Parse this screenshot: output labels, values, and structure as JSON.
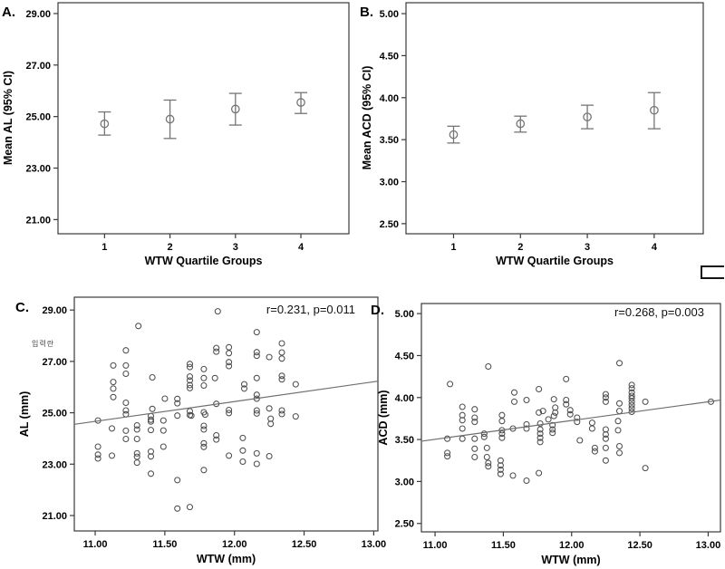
{
  "figure": {
    "background": "#ffffff",
    "korean_note": "입력란"
  },
  "colors": {
    "frame": "#3a3a3a",
    "errorbar": "#757575",
    "marker": "#4d4d4d",
    "fit_line": "#6e6e6e",
    "text": "#000000"
  },
  "chart_data": [
    {
      "id": "A",
      "panel_label": "A.",
      "type": "errorbar",
      "title": "",
      "ylabel": "Mean AL (95% CI)",
      "xlabel": "WTW Quartile Groups",
      "ylim": [
        20.45,
        29.42
      ],
      "yticks": [
        "21.00",
        "23.00",
        "25.00",
        "27.00",
        "29.00"
      ],
      "categories": [
        "1",
        "2",
        "3",
        "4"
      ],
      "cat_pos": [
        0.16,
        0.385,
        0.61,
        0.835
      ],
      "means": [
        24.72,
        24.9,
        25.29,
        25.55
      ],
      "ci_low": [
        24.28,
        24.15,
        24.67,
        25.12
      ],
      "ci_high": [
        25.18,
        25.64,
        25.9,
        25.93
      ],
      "grid": false,
      "legend": "none"
    },
    {
      "id": "B",
      "panel_label": "B.",
      "type": "errorbar",
      "title": "",
      "ylabel": "Mean ACD (95% CI)",
      "xlabel": "WTW Quartile Groups",
      "ylim": [
        2.38,
        5.13
      ],
      "yticks": [
        "2.50",
        "3.00",
        "3.50",
        "4.00",
        "4.50",
        "5.00"
      ],
      "categories": [
        "1",
        "2",
        "3",
        "4"
      ],
      "cat_pos": [
        0.16,
        0.385,
        0.61,
        0.835
      ],
      "means": [
        3.56,
        3.69,
        3.77,
        3.85
      ],
      "ci_low": [
        3.46,
        3.59,
        3.63,
        3.63
      ],
      "ci_high": [
        3.66,
        3.78,
        3.91,
        4.06
      ],
      "grid": false,
      "legend": "none"
    },
    {
      "id": "C",
      "panel_label": "C.",
      "type": "scatter",
      "title": "",
      "ylabel": "AL (mm)",
      "xlabel": "WTW (mm)",
      "annotation": "r=0.231, p=0.011",
      "xlim": [
        10.85,
        13.03
      ],
      "ylim": [
        20.4,
        29.5
      ],
      "xticks": [
        "11.00",
        "11.50",
        "12.00",
        "12.50",
        "13.00"
      ],
      "yticks": [
        "21.00",
        "23.00",
        "25.00",
        "27.00",
        "29.00"
      ],
      "fit_line": {
        "x1": 10.85,
        "y1": 24.55,
        "x2": 13.03,
        "y2": 26.23
      },
      "grid": false,
      "legend": "none",
      "points": [
        [
          11.88,
          28.95
        ],
        [
          11.31,
          28.38
        ],
        [
          12.16,
          28.14
        ],
        [
          11.22,
          27.43
        ],
        [
          11.87,
          27.52
        ],
        [
          11.87,
          27.38
        ],
        [
          11.96,
          27.55
        ],
        [
          11.96,
          27.32
        ],
        [
          12.16,
          27.36
        ],
        [
          12.16,
          27.22
        ],
        [
          12.25,
          27.17
        ],
        [
          12.34,
          27.7
        ],
        [
          12.34,
          27.35
        ],
        [
          12.34,
          27.11
        ],
        [
          11.96,
          26.97
        ],
        [
          11.96,
          26.82
        ],
        [
          11.13,
          26.84
        ],
        [
          11.22,
          26.84
        ],
        [
          11.22,
          26.52
        ],
        [
          11.41,
          26.38
        ],
        [
          11.68,
          26.9
        ],
        [
          11.68,
          26.78
        ],
        [
          11.68,
          26.41
        ],
        [
          11.68,
          26.26
        ],
        [
          11.68,
          26.08
        ],
        [
          11.68,
          25.96
        ],
        [
          11.78,
          26.7
        ],
        [
          11.78,
          26.35
        ],
        [
          11.78,
          26.06
        ],
        [
          11.86,
          26.35
        ],
        [
          12.07,
          26.11
        ],
        [
          12.07,
          25.94
        ],
        [
          12.16,
          26.35
        ],
        [
          12.34,
          26.44
        ],
        [
          12.34,
          26.3
        ],
        [
          12.44,
          26.11
        ],
        [
          11.13,
          26.2
        ],
        [
          11.13,
          25.94
        ],
        [
          11.13,
          25.61
        ],
        [
          11.5,
          25.55
        ],
        [
          11.59,
          25.54
        ],
        [
          11.59,
          25.37
        ],
        [
          11.22,
          25.39
        ],
        [
          11.41,
          25.15
        ],
        [
          11.22,
          25.09
        ],
        [
          11.22,
          24.94
        ],
        [
          11.68,
          25.06
        ],
        [
          11.68,
          24.91
        ],
        [
          11.78,
          25.02
        ],
        [
          12.16,
          25.7
        ],
        [
          12.16,
          25.55
        ],
        [
          11.87,
          25.35
        ],
        [
          12.25,
          25.17
        ],
        [
          12.34,
          25.09
        ],
        [
          12.34,
          24.95
        ],
        [
          11.96,
          25.11
        ],
        [
          11.96,
          24.99
        ],
        [
          12.16,
          25.09
        ],
        [
          12.16,
          24.97
        ],
        [
          12.44,
          24.86
        ],
        [
          12.26,
          24.77
        ],
        [
          12.26,
          24.57
        ],
        [
          11.87,
          24.12
        ],
        [
          11.87,
          23.96
        ],
        [
          11.02,
          24.7
        ],
        [
          11.4,
          24.87
        ],
        [
          11.4,
          24.73
        ],
        [
          11.12,
          24.39
        ],
        [
          11.22,
          24.3
        ],
        [
          11.22,
          23.98
        ],
        [
          11.3,
          24.51
        ],
        [
          11.3,
          24.35
        ],
        [
          11.3,
          23.98
        ],
        [
          11.4,
          24.66
        ],
        [
          11.4,
          24.33
        ],
        [
          11.49,
          24.7
        ],
        [
          11.49,
          24.31
        ],
        [
          11.49,
          23.68
        ],
        [
          11.59,
          24.89
        ],
        [
          11.69,
          24.89
        ],
        [
          11.79,
          24.93
        ],
        [
          11.78,
          24.49
        ],
        [
          11.78,
          24.35
        ],
        [
          11.78,
          23.81
        ],
        [
          11.78,
          23.67
        ],
        [
          11.02,
          23.68
        ],
        [
          11.02,
          23.37
        ],
        [
          11.02,
          23.22
        ],
        [
          11.12,
          23.33
        ],
        [
          11.3,
          23.42
        ],
        [
          11.3,
          23.29
        ],
        [
          11.3,
          23.06
        ],
        [
          11.4,
          23.49
        ],
        [
          11.4,
          23.3
        ],
        [
          11.4,
          22.63
        ],
        [
          11.78,
          22.77
        ],
        [
          11.59,
          22.38
        ],
        [
          11.59,
          21.27
        ],
        [
          11.68,
          21.33
        ],
        [
          12.06,
          24.02
        ],
        [
          12.06,
          23.53
        ],
        [
          12.06,
          23.1
        ],
        [
          11.96,
          23.33
        ],
        [
          12.16,
          23.42
        ],
        [
          12.16,
          23.01
        ],
        [
          12.25,
          23.31
        ]
      ]
    },
    {
      "id": "D",
      "panel_label": "D.",
      "type": "scatter",
      "title": "",
      "ylabel": "ACD (mm)",
      "xlabel": "WTW (mm)",
      "annotation": "r=0.268, p=0.003",
      "xlim": [
        10.9,
        13.09
      ],
      "ylim": [
        2.4,
        5.12
      ],
      "xticks": [
        "11.00",
        "11.50",
        "12.00",
        "12.50",
        "13.00"
      ],
      "yticks": [
        "2.50",
        "3.00",
        "3.50",
        "4.00",
        "4.50",
        "5.00"
      ],
      "fit_line": {
        "x1": 10.9,
        "y1": 3.48,
        "x2": 13.09,
        "y2": 3.97
      },
      "grid": false,
      "legend": "none",
      "points": [
        [
          11.39,
          4.37
        ],
        [
          11.11,
          4.16
        ],
        [
          11.96,
          4.22
        ],
        [
          12.35,
          4.41
        ],
        [
          11.58,
          4.06
        ],
        [
          11.58,
          3.95
        ],
        [
          11.76,
          4.1
        ],
        [
          11.67,
          3.97
        ],
        [
          11.87,
          3.98
        ],
        [
          11.2,
          3.89
        ],
        [
          11.29,
          3.86
        ],
        [
          11.79,
          3.84
        ],
        [
          11.88,
          3.88
        ],
        [
          11.88,
          3.82
        ],
        [
          11.96,
          3.97
        ],
        [
          11.96,
          3.92
        ],
        [
          11.2,
          3.79
        ],
        [
          11.49,
          3.79
        ],
        [
          11.76,
          3.82
        ],
        [
          11.87,
          3.78
        ],
        [
          12.44,
          4.15
        ],
        [
          12.44,
          4.11
        ],
        [
          12.44,
          4.06
        ],
        [
          12.44,
          4.02
        ],
        [
          12.44,
          3.99
        ],
        [
          12.44,
          3.95
        ],
        [
          12.44,
          3.91
        ],
        [
          12.44,
          3.87
        ],
        [
          12.44,
          3.83
        ],
        [
          12.25,
          4.04
        ],
        [
          12.25,
          4.0
        ],
        [
          12.25,
          3.95
        ],
        [
          12.35,
          3.93
        ],
        [
          12.35,
          3.84
        ],
        [
          12.54,
          3.95
        ],
        [
          11.99,
          3.85
        ],
        [
          11.99,
          3.8
        ],
        [
          11.2,
          3.73
        ],
        [
          11.2,
          3.63
        ],
        [
          11.29,
          3.76
        ],
        [
          11.29,
          3.71
        ],
        [
          11.49,
          3.72
        ],
        [
          11.09,
          3.51
        ],
        [
          11.2,
          3.51
        ],
        [
          11.29,
          3.51
        ],
        [
          11.36,
          3.57
        ],
        [
          11.36,
          3.53
        ],
        [
          11.49,
          3.61
        ],
        [
          11.49,
          3.57
        ],
        [
          11.49,
          3.52
        ],
        [
          11.57,
          3.63
        ],
        [
          11.67,
          3.68
        ],
        [
          11.67,
          3.63
        ],
        [
          11.77,
          3.69
        ],
        [
          11.83,
          3.74
        ],
        [
          11.77,
          3.62
        ],
        [
          11.77,
          3.57
        ],
        [
          11.77,
          3.52
        ],
        [
          11.77,
          3.47
        ],
        [
          11.86,
          3.67
        ],
        [
          11.86,
          3.62
        ],
        [
          11.86,
          3.58
        ],
        [
          11.09,
          3.34
        ],
        [
          11.09,
          3.3
        ],
        [
          11.29,
          3.39
        ],
        [
          11.29,
          3.29
        ],
        [
          11.38,
          3.4
        ],
        [
          11.38,
          3.29
        ],
        [
          11.39,
          3.22
        ],
        [
          11.39,
          3.18
        ],
        [
          11.48,
          3.25
        ],
        [
          11.48,
          3.19
        ],
        [
          11.48,
          3.14
        ],
        [
          11.48,
          3.09
        ],
        [
          11.57,
          3.07
        ],
        [
          11.67,
          3.01
        ],
        [
          11.76,
          3.1
        ],
        [
          12.04,
          3.76
        ],
        [
          12.04,
          3.71
        ],
        [
          12.15,
          3.7
        ],
        [
          12.15,
          3.63
        ],
        [
          12.34,
          3.72
        ],
        [
          12.34,
          3.61
        ],
        [
          12.25,
          3.62
        ],
        [
          12.25,
          3.56
        ],
        [
          12.25,
          3.51
        ],
        [
          12.06,
          3.49
        ],
        [
          12.17,
          3.4
        ],
        [
          12.17,
          3.36
        ],
        [
          12.25,
          3.4
        ],
        [
          12.35,
          3.42
        ],
        [
          12.35,
          3.34
        ],
        [
          12.25,
          3.25
        ],
        [
          12.54,
          3.16
        ],
        [
          13.02,
          3.95
        ]
      ]
    }
  ]
}
